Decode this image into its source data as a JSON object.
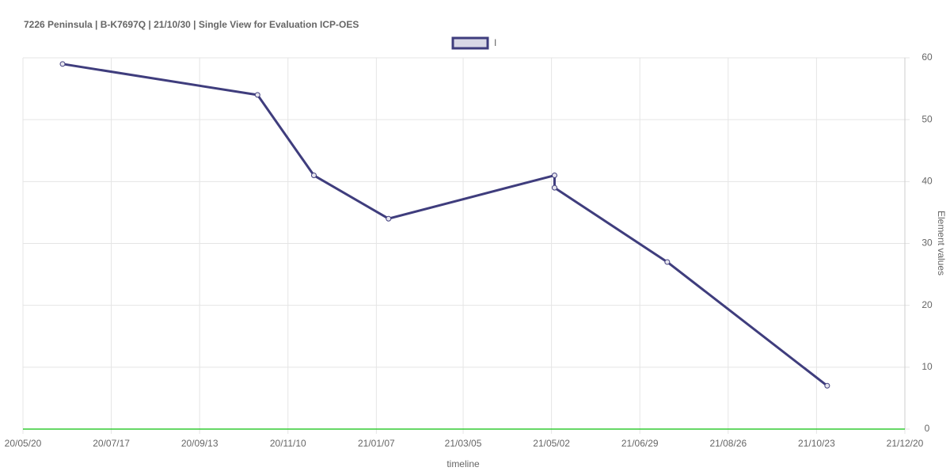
{
  "chart_data": {
    "type": "line",
    "title": "7226 Peninsula | B-K7697Q | 21/10/30 | Single View for Evaluation ICP-OES",
    "x_label": "timeline",
    "y_label": "Element values",
    "x": [
      "20/06/15",
      "20/10/21",
      "20/11/27",
      "21/01/15",
      "21/05/04",
      "21/05/04",
      "21/07/17",
      "21/10/30"
    ],
    "series": [
      {
        "name": "I",
        "color": "#3f3d7d",
        "values": [
          59,
          54,
          41,
          34,
          41,
          39,
          27,
          7
        ]
      }
    ],
    "xlim": [
      "20/05/20",
      "21/12/20"
    ],
    "xticks": [
      "20/05/20",
      "20/07/17",
      "20/09/13",
      "20/11/10",
      "21/01/07",
      "21/03/05",
      "21/05/02",
      "21/06/29",
      "21/08/26",
      "21/10/23",
      "21/12/20"
    ],
    "ylim": [
      0,
      60
    ],
    "yticks": [
      0,
      10,
      20,
      30,
      40,
      50,
      60
    ],
    "y_axis_side": "right",
    "grid": true,
    "zero_line_color": "#33cc33",
    "legend": "top"
  }
}
